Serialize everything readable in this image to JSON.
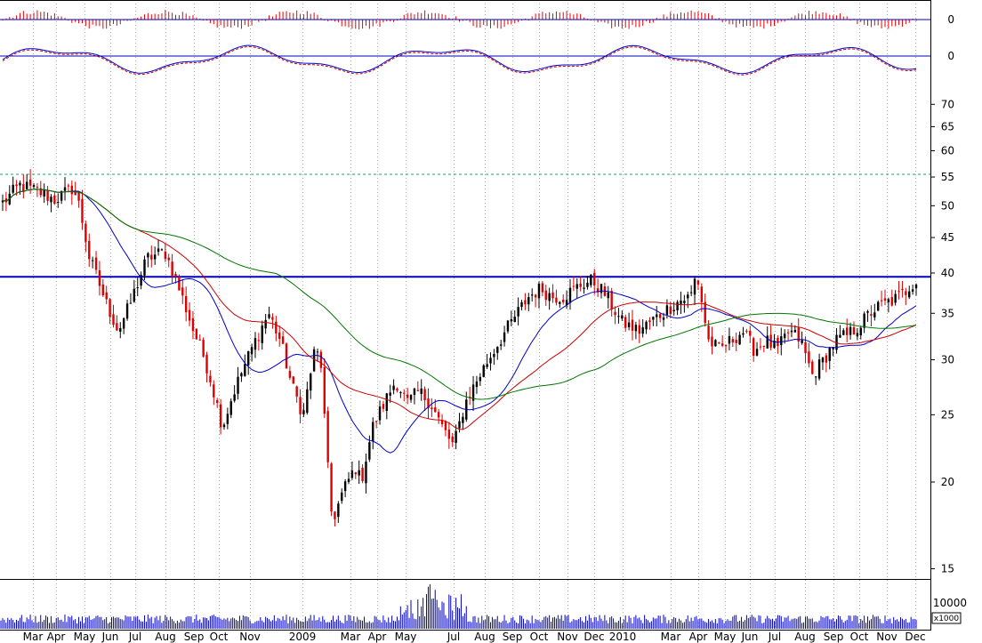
{
  "chart_data": {
    "type": "candlestick",
    "title": "",
    "xlabel": "",
    "ylabel": "",
    "scale": "log",
    "ylim": [
      14.5,
      72
    ],
    "y_ticks": [
      "70",
      "65",
      "60",
      "55",
      "50",
      "45",
      "40",
      "35",
      "30",
      "25",
      "20",
      "15"
    ],
    "x_month_labels": [
      "Mar",
      "Apr",
      "May",
      "Jun",
      "Jul",
      "Aug",
      "Sep",
      "Oct",
      "Nov",
      "2009",
      "Mar",
      "Apr",
      "May",
      "Jul",
      "Aug",
      "Sep",
      "Oct",
      "Nov",
      "Dec",
      "2010",
      "Mar",
      "Apr",
      "May",
      "Jun",
      "Jul",
      "Aug",
      "Sep",
      "Oct",
      "Nov",
      "Dec"
    ],
    "period": "2008-02 to 2010-12",
    "price_keyframes": [
      [
        0,
        50.5
      ],
      [
        3,
        53.5
      ],
      [
        6,
        52.5
      ],
      [
        9,
        51
      ],
      [
        12,
        53
      ],
      [
        13,
        51
      ],
      [
        15,
        42
      ],
      [
        18,
        36
      ],
      [
        20,
        33
      ],
      [
        22,
        36
      ],
      [
        25,
        42
      ],
      [
        28,
        43
      ],
      [
        30,
        39
      ],
      [
        33,
        33
      ],
      [
        35,
        30
      ],
      [
        37,
        26
      ],
      [
        38,
        24
      ],
      [
        40,
        27
      ],
      [
        43,
        31
      ],
      [
        46,
        35
      ],
      [
        48,
        32
      ],
      [
        50,
        27.5
      ],
      [
        52,
        25
      ],
      [
        54,
        31
      ],
      [
        55,
        30
      ],
      [
        56,
        22
      ],
      [
        57,
        17.5
      ],
      [
        59,
        19.5
      ],
      [
        61,
        21
      ],
      [
        62,
        20
      ],
      [
        64,
        24
      ],
      [
        66,
        26
      ],
      [
        68,
        28
      ],
      [
        70,
        26
      ],
      [
        72,
        27
      ],
      [
        74,
        26
      ],
      [
        76,
        24
      ],
      [
        78,
        22.5
      ],
      [
        80,
        26
      ],
      [
        82,
        28
      ],
      [
        85,
        31
      ],
      [
        88,
        34
      ],
      [
        91,
        37
      ],
      [
        93,
        38
      ],
      [
        95,
        37
      ],
      [
        97,
        37
      ],
      [
        100,
        38.5
      ],
      [
        102,
        39
      ],
      [
        104,
        37.5
      ],
      [
        107,
        34
      ],
      [
        110,
        33
      ],
      [
        112,
        34
      ],
      [
        115,
        35.5
      ],
      [
        117,
        36.5
      ],
      [
        119,
        37
      ],
      [
        120,
        40
      ],
      [
        121,
        36
      ],
      [
        122,
        32
      ],
      [
        124,
        31
      ],
      [
        126,
        32
      ],
      [
        128,
        33
      ],
      [
        130,
        31
      ],
      [
        132,
        32
      ],
      [
        134,
        31
      ],
      [
        136,
        33
      ],
      [
        138,
        32
      ],
      [
        140,
        28.5
      ],
      [
        142,
        30
      ],
      [
        144,
        32
      ],
      [
        146,
        32.5
      ],
      [
        148,
        33.5
      ],
      [
        150,
        35
      ],
      [
        152,
        36
      ],
      [
        154,
        36.5
      ],
      [
        156,
        37.5
      ],
      [
        157,
        38.5
      ],
      [
        158,
        39
      ]
    ],
    "resistance_level": 39.5,
    "dashed_level": 55.5,
    "moving_averages": [
      {
        "color": "#0000cc",
        "period": 5
      },
      {
        "color": "#cc0000",
        "period": 10
      },
      {
        "color": "#007700",
        "period": 20
      }
    ],
    "indicator_panels": [
      {
        "type": "histogram",
        "zero_label": "0",
        "color": "#ee0000"
      },
      {
        "type": "oscillator",
        "zero_label": "0",
        "line_colors": [
          "#0000cc",
          "#cc0000"
        ]
      }
    ],
    "volume_panel": {
      "tick_label": "10000",
      "unit_label": "x1000",
      "color": "#0000cc"
    },
    "grid": "vertical dotted",
    "colors": {
      "bull": "#000000",
      "bear": "#dd0000",
      "resistance": "#0000bb",
      "dashed": "#2a9a7a"
    }
  }
}
